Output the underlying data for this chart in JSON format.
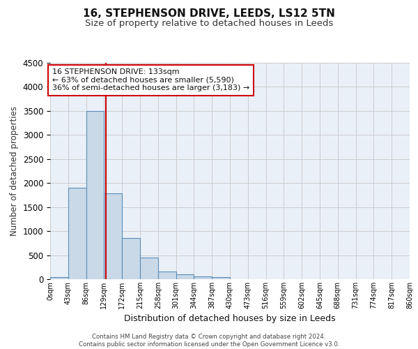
{
  "title1": "16, STEPHENSON DRIVE, LEEDS, LS12 5TN",
  "title2": "Size of property relative to detached houses in Leeds",
  "xlabel": "Distribution of detached houses by size in Leeds",
  "ylabel": "Number of detached properties",
  "bin_edges": [
    0,
    43,
    86,
    129,
    172,
    215,
    258,
    301,
    344,
    387,
    430,
    473,
    516,
    559,
    602,
    645,
    688,
    731,
    774,
    817,
    860
  ],
  "bar_values": [
    40,
    1900,
    3500,
    1780,
    850,
    450,
    160,
    95,
    60,
    50,
    0,
    0,
    0,
    0,
    0,
    0,
    0,
    0,
    0,
    0
  ],
  "bar_color": "#c9d9e8",
  "bar_edge_color": "#5b8db8",
  "property_size": 133,
  "property_line_color": "#cc0000",
  "annotation_text": "16 STEPHENSON DRIVE: 133sqm\n← 63% of detached houses are smaller (5,590)\n36% of semi-detached houses are larger (3,183) →",
  "annotation_box_color": "#ffffff",
  "annotation_box_edge_color": "#cc0000",
  "ylim": [
    0,
    4500
  ],
  "yticks": [
    0,
    500,
    1000,
    1500,
    2000,
    2500,
    3000,
    3500,
    4000,
    4500
  ],
  "grid_color": "#cccccc",
  "bg_color": "#eaf0f8",
  "title1_fontsize": 11,
  "title2_fontsize": 9.5,
  "footer1": "Contains HM Land Registry data © Crown copyright and database right 2024.",
  "footer2": "Contains public sector information licensed under the Open Government Licence v3.0.",
  "tick_labels": [
    "0sqm",
    "43sqm",
    "86sqm",
    "129sqm",
    "172sqm",
    "215sqm",
    "258sqm",
    "301sqm",
    "344sqm",
    "387sqm",
    "430sqm",
    "473sqm",
    "516sqm",
    "559sqm",
    "602sqm",
    "645sqm",
    "688sqm",
    "731sqm",
    "774sqm",
    "817sqm",
    "860sqm"
  ]
}
